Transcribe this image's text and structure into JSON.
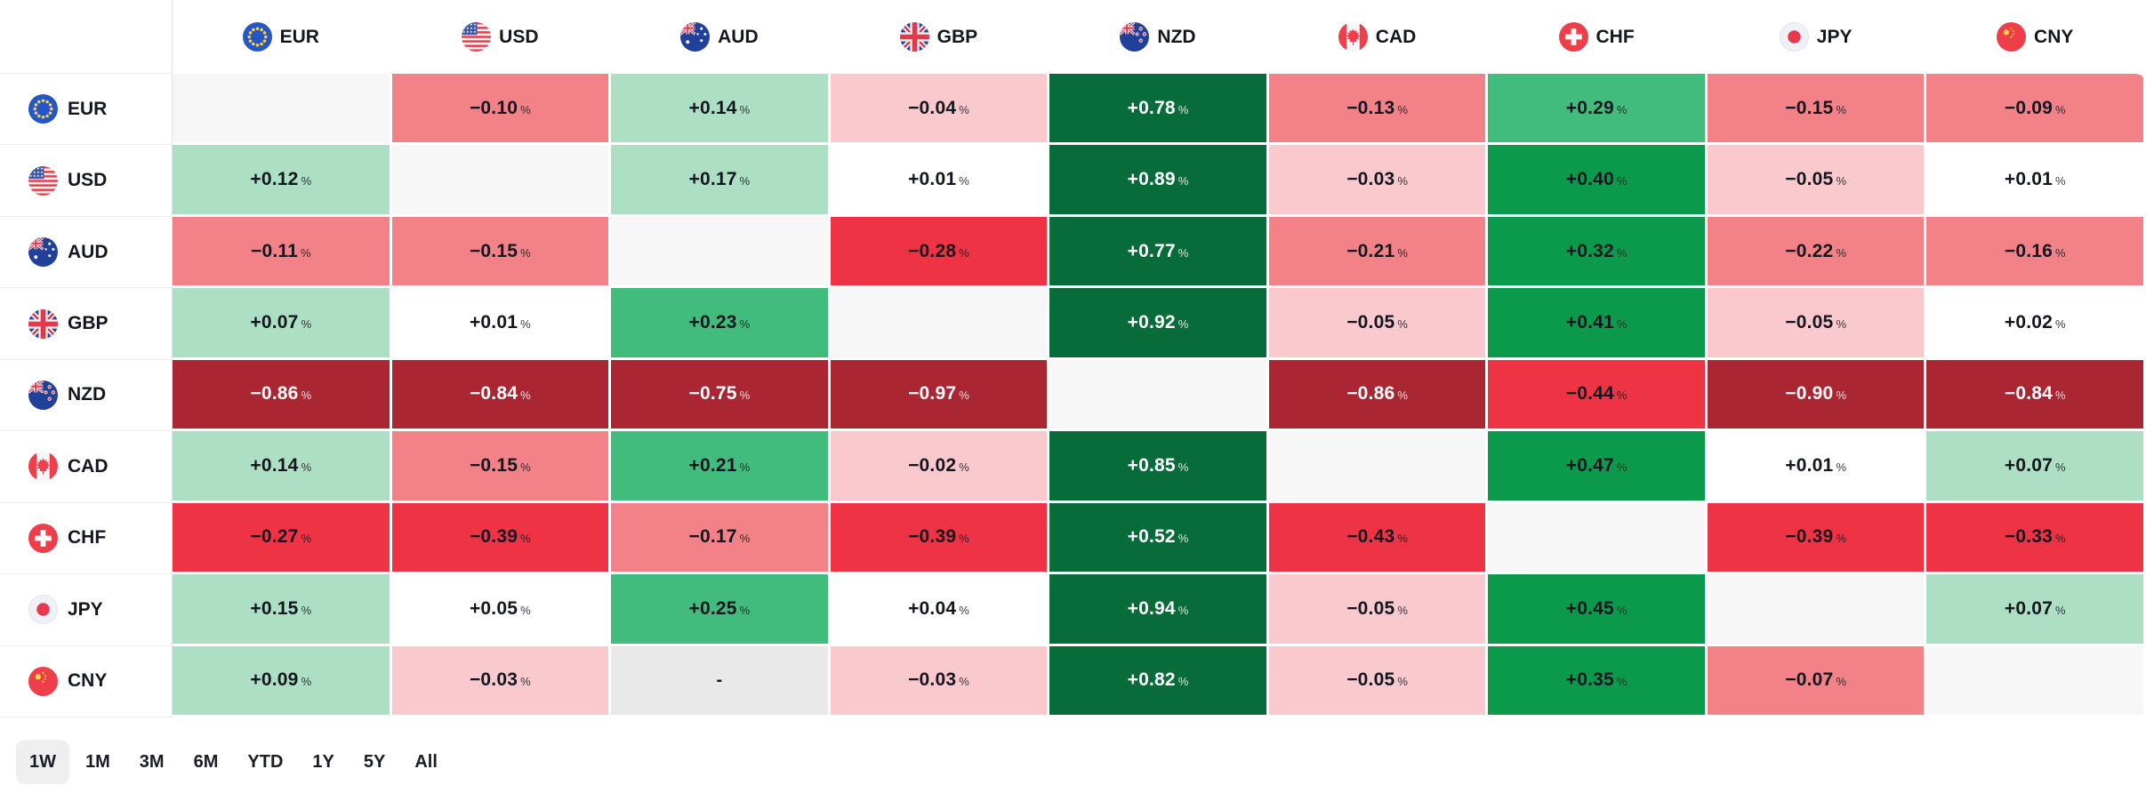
{
  "widget": {
    "kind": "forex-heatmap"
  },
  "chart_data": {
    "type": "heatmap",
    "unit": "%",
    "rows": [
      "EUR",
      "USD",
      "AUD",
      "GBP",
      "NZD",
      "CAD",
      "CHF",
      "JPY",
      "CNY"
    ],
    "columns": [
      "EUR",
      "USD",
      "AUD",
      "GBP",
      "NZD",
      "CAD",
      "CHF",
      "JPY",
      "CNY"
    ],
    "matrix": [
      [
        null,
        -0.1,
        0.14,
        -0.04,
        0.78,
        -0.13,
        0.29,
        -0.15,
        -0.09
      ],
      [
        0.12,
        null,
        0.17,
        0.01,
        0.89,
        -0.03,
        0.4,
        -0.05,
        0.01
      ],
      [
        -0.11,
        -0.15,
        null,
        -0.28,
        0.77,
        -0.21,
        0.32,
        -0.22,
        -0.16
      ],
      [
        0.07,
        0.01,
        0.23,
        null,
        0.92,
        -0.05,
        0.41,
        -0.05,
        0.02
      ],
      [
        -0.86,
        -0.84,
        -0.75,
        -0.97,
        null,
        -0.86,
        -0.44,
        -0.9,
        -0.84
      ],
      [
        0.14,
        -0.15,
        0.21,
        -0.02,
        0.85,
        null,
        0.47,
        0.01,
        0.07
      ],
      [
        -0.27,
        -0.39,
        -0.17,
        -0.39,
        0.52,
        -0.43,
        null,
        -0.39,
        -0.33
      ],
      [
        0.15,
        0.05,
        0.25,
        0.04,
        0.94,
        -0.05,
        0.45,
        null,
        0.07
      ],
      [
        0.09,
        -0.03,
        "-",
        -0.03,
        0.82,
        -0.05,
        0.35,
        -0.07,
        null
      ]
    ],
    "missing_value_label": "-",
    "legend_position": "none",
    "grid": false
  },
  "flags": {
    "EUR": "eur-flag-icon",
    "USD": "usd-flag-icon",
    "AUD": "aud-flag-icon",
    "GBP": "gbp-flag-icon",
    "NZD": "nzd-flag-icon",
    "CAD": "cad-flag-icon",
    "CHF": "chf-flag-icon",
    "JPY": "jpy-flag-icon",
    "CNY": "cny-flag-icon"
  },
  "colors": {
    "pos_strongest": "#076b3a",
    "pos_strong": "#0b9a4b",
    "pos_medium": "#42bc7d",
    "pos_light": "#addfc5",
    "neutral": "#ffffff",
    "neg_light": "#f9c9ce",
    "neg_medium": "#f38188",
    "neg_strong": "#ee3444",
    "neg_strongest": "#a92632",
    "diagonal": "#f7f7f7",
    "missing": "#e9e9e9",
    "text_dark": "#14171f",
    "text_light": "#ffffff",
    "selected_timeframe_bg": "#efefef"
  },
  "timeframes": {
    "options": [
      "1W",
      "1M",
      "3M",
      "6M",
      "YTD",
      "1Y",
      "5Y",
      "All"
    ],
    "selected": "1W"
  }
}
